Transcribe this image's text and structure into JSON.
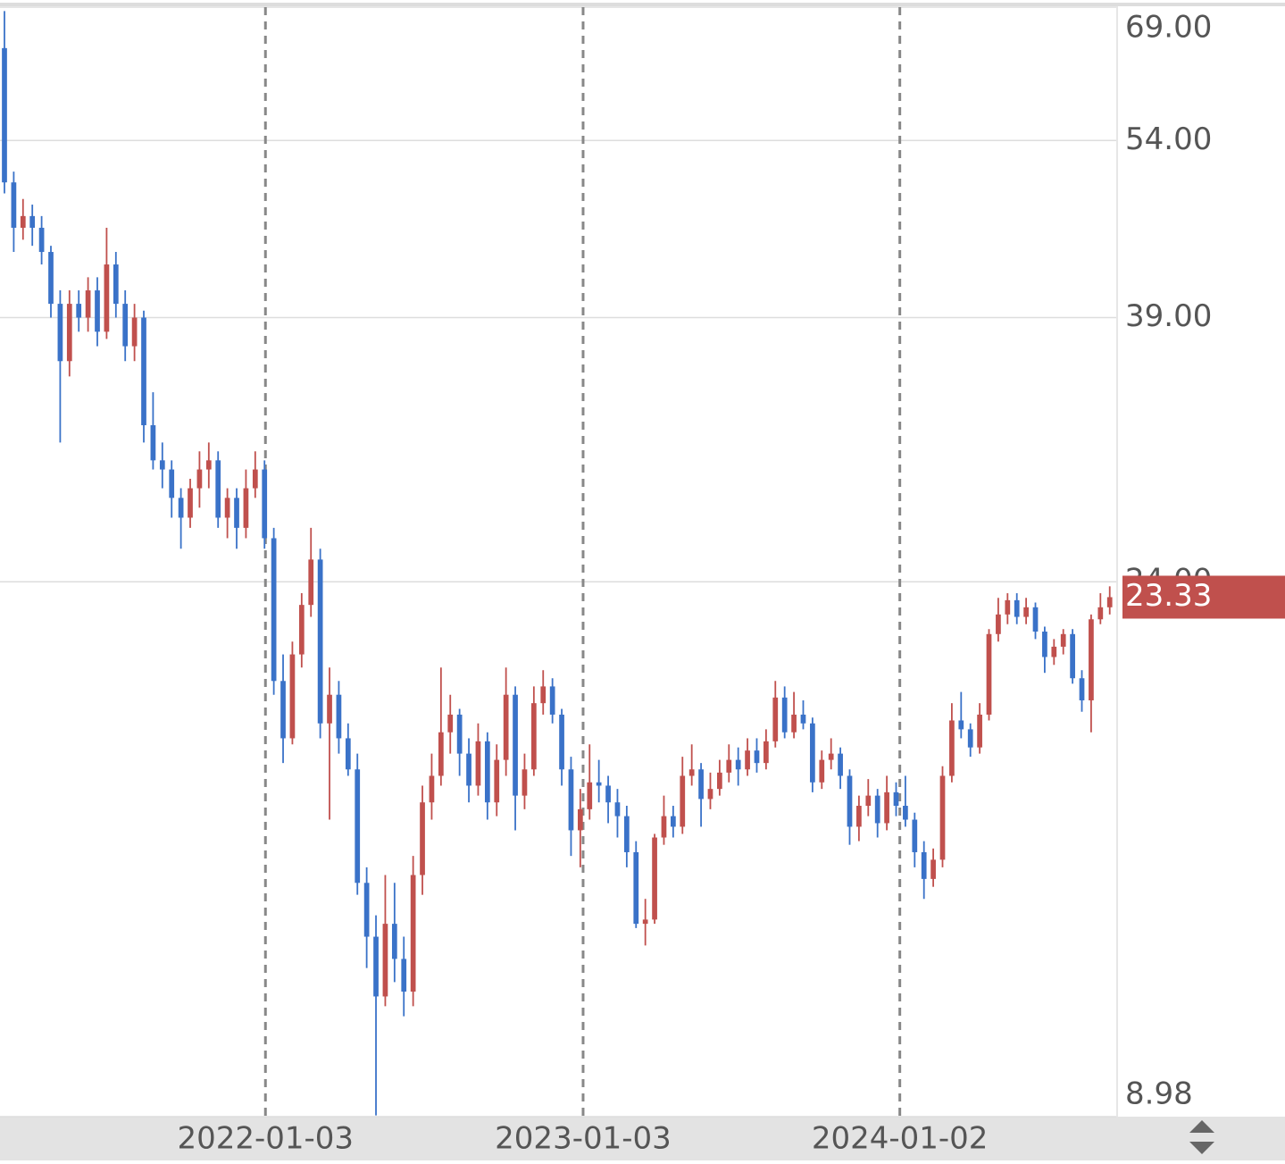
{
  "chart_data": {
    "type": "candlestick",
    "log_scale": true,
    "grid": true,
    "up_color": "#c0504d",
    "down_color": "#3a72c8",
    "ylim": [
      8.98,
      69
    ],
    "yticks": [
      {
        "value": 69,
        "label": "69.00"
      },
      {
        "value": 54,
        "label": "54.00"
      },
      {
        "value": 39,
        "label": "39.00"
      },
      {
        "value": 24,
        "label": "24.00"
      },
      {
        "value": 8.98,
        "label": "8.98"
      }
    ],
    "xlim": [
      -0.48,
      119.7
    ],
    "xticks": [
      {
        "value": 28.1,
        "label": "2022-01-03"
      },
      {
        "value": 62.3,
        "label": "2023-01-03"
      },
      {
        "value": 96.4,
        "label": "2024-01-02"
      }
    ],
    "ohlc": [
      [
        64,
        68.5,
        49,
        50
      ],
      [
        50,
        51,
        44,
        46
      ],
      [
        46,
        48.5,
        45,
        47
      ],
      [
        47,
        48,
        44.5,
        46
      ],
      [
        46,
        47,
        43,
        44
      ],
      [
        44,
        44.5,
        39,
        40
      ],
      [
        40,
        41,
        31,
        36
      ],
      [
        36,
        41,
        35,
        40
      ],
      [
        40,
        41,
        38,
        39
      ],
      [
        39,
        42,
        38,
        41
      ],
      [
        41,
        42,
        37,
        38
      ],
      [
        38,
        46,
        37.5,
        43
      ],
      [
        43,
        44,
        39,
        40
      ],
      [
        40,
        41,
        36,
        37
      ],
      [
        37,
        40,
        36,
        39
      ],
      [
        39,
        39.5,
        31,
        32
      ],
      [
        32,
        34,
        29.5,
        30
      ],
      [
        30,
        31,
        28.5,
        29.5
      ],
      [
        29.5,
        30,
        27,
        28
      ],
      [
        28,
        28.5,
        25.5,
        27
      ],
      [
        27,
        29,
        26.5,
        28.5
      ],
      [
        28.5,
        30.5,
        27.5,
        29.5
      ],
      [
        29.5,
        31,
        28.5,
        30
      ],
      [
        30,
        30.5,
        26.5,
        27
      ],
      [
        27,
        28.5,
        26,
        28
      ],
      [
        28,
        28.5,
        25.5,
        26.5
      ],
      [
        26.5,
        29.5,
        26,
        28.5
      ],
      [
        28.5,
        30.5,
        28,
        29.5
      ],
      [
        29.5,
        30,
        25.5,
        26
      ],
      [
        26,
        26.5,
        19.5,
        20
      ],
      [
        20,
        21,
        17.2,
        18
      ],
      [
        18,
        21.5,
        17.8,
        21
      ],
      [
        21,
        23.5,
        20.5,
        23
      ],
      [
        23,
        26.5,
        22.5,
        25
      ],
      [
        25,
        25.5,
        18,
        18.5
      ],
      [
        18.5,
        20.5,
        15.5,
        19.5
      ],
      [
        19.5,
        20,
        17.5,
        18
      ],
      [
        18,
        18.5,
        16.8,
        17
      ],
      [
        17,
        17.5,
        13.5,
        13.8
      ],
      [
        13.8,
        14.2,
        11.8,
        12.5
      ],
      [
        12.5,
        13,
        9,
        11.2
      ],
      [
        11.2,
        14,
        11,
        12.8
      ],
      [
        12.8,
        13.8,
        11.5,
        12
      ],
      [
        12,
        12.5,
        10.8,
        11.3
      ],
      [
        11.3,
        14.5,
        11,
        14
      ],
      [
        14,
        16.5,
        13.5,
        16
      ],
      [
        16,
        17.5,
        15.5,
        16.8
      ],
      [
        16.8,
        20.5,
        16.5,
        18.2
      ],
      [
        18.2,
        19.5,
        17.5,
        18.8
      ],
      [
        18.8,
        19,
        16.8,
        17.5
      ],
      [
        17.5,
        18,
        16,
        16.5
      ],
      [
        16.5,
        18.5,
        16.2,
        17.9
      ],
      [
        17.9,
        18.2,
        15.5,
        16
      ],
      [
        16,
        17.8,
        15.6,
        17.3
      ],
      [
        17.3,
        20.5,
        16.8,
        19.5
      ],
      [
        19.5,
        19.8,
        15.2,
        16.2
      ],
      [
        16.2,
        17.5,
        15.8,
        17
      ],
      [
        17,
        19.8,
        16.8,
        19.2
      ],
      [
        19.2,
        20.4,
        18.8,
        19.8
      ],
      [
        19.8,
        20.1,
        18.5,
        18.8
      ],
      [
        18.8,
        19,
        16.5,
        17
      ],
      [
        17,
        17.4,
        14.5,
        15.2
      ],
      [
        15.2,
        16.4,
        14.2,
        15.8
      ],
      [
        15.8,
        17.8,
        15.5,
        16.6
      ],
      [
        16.6,
        17.3,
        16,
        16.5
      ],
      [
        16.5,
        16.8,
        15.4,
        16
      ],
      [
        16,
        16.4,
        15,
        15.6
      ],
      [
        15.6,
        15.9,
        14.2,
        14.6
      ],
      [
        14.6,
        14.9,
        12.7,
        12.8
      ],
      [
        12.8,
        13.4,
        12.3,
        12.9
      ],
      [
        12.9,
        15.1,
        12.8,
        15
      ],
      [
        15,
        16.2,
        14.8,
        15.6
      ],
      [
        15.6,
        15.9,
        15,
        15.3
      ],
      [
        15.3,
        17.4,
        15.1,
        16.8
      ],
      [
        16.8,
        17.8,
        16.5,
        17
      ],
      [
        17,
        17.2,
        15.3,
        16.1
      ],
      [
        16.1,
        16.9,
        15.8,
        16.4
      ],
      [
        16.4,
        17.3,
        16.2,
        16.9
      ],
      [
        16.9,
        17.8,
        16.6,
        17.3
      ],
      [
        17.3,
        17.7,
        16.5,
        17
      ],
      [
        17,
        18,
        16.8,
        17.6
      ],
      [
        17.6,
        18,
        16.9,
        17.2
      ],
      [
        17.2,
        18.3,
        17,
        17.9
      ],
      [
        17.9,
        20,
        17.7,
        19.4
      ],
      [
        19.4,
        19.8,
        18,
        18.2
      ],
      [
        18.2,
        19.6,
        18,
        18.8
      ],
      [
        18.8,
        19.3,
        18.3,
        18.5
      ],
      [
        18.5,
        18.7,
        16.3,
        16.6
      ],
      [
        16.6,
        17.6,
        16.4,
        17.3
      ],
      [
        17.3,
        18,
        17,
        17.5
      ],
      [
        17.5,
        17.7,
        16.4,
        16.8
      ],
      [
        16.8,
        17,
        14.8,
        15.3
      ],
      [
        15.3,
        16.2,
        14.9,
        15.9
      ],
      [
        15.9,
        16.7,
        15.6,
        16.2
      ],
      [
        16.2,
        16.4,
        15,
        15.4
      ],
      [
        15.4,
        16.8,
        15.2,
        16.3
      ],
      [
        16.3,
        16.6,
        15.6,
        15.9
      ],
      [
        15.9,
        16.8,
        15.3,
        15.5
      ],
      [
        15.5,
        15.7,
        14.2,
        14.6
      ],
      [
        14.6,
        14.9,
        13.4,
        13.9
      ],
      [
        13.9,
        14.7,
        13.7,
        14.4
      ],
      [
        14.4,
        17.1,
        14.2,
        16.8
      ],
      [
        16.8,
        19.2,
        16.6,
        18.6
      ],
      [
        18.6,
        19.6,
        18,
        18.3
      ],
      [
        18.3,
        18.5,
        17.4,
        17.7
      ],
      [
        17.7,
        19.2,
        17.5,
        18.8
      ],
      [
        18.8,
        22,
        18.6,
        21.8
      ],
      [
        21.8,
        23.3,
        21.5,
        22.6
      ],
      [
        22.6,
        23.5,
        22.2,
        23.2
      ],
      [
        23.2,
        23.5,
        22.2,
        22.5
      ],
      [
        22.5,
        23.3,
        22.2,
        22.9
      ],
      [
        22.9,
        23.1,
        21.6,
        21.9
      ],
      [
        21.9,
        22.1,
        20.3,
        20.9
      ],
      [
        20.9,
        21.6,
        20.6,
        21.3
      ],
      [
        21.3,
        22,
        21,
        21.8
      ],
      [
        21.8,
        22,
        19.9,
        20.1
      ],
      [
        20.1,
        20.4,
        18.9,
        19.3
      ],
      [
        19.3,
        22.6,
        18.2,
        22.4
      ],
      [
        22.4,
        23.5,
        22.2,
        22.9
      ],
      [
        22.9,
        23.8,
        22.6,
        23.33
      ]
    ]
  }
}
